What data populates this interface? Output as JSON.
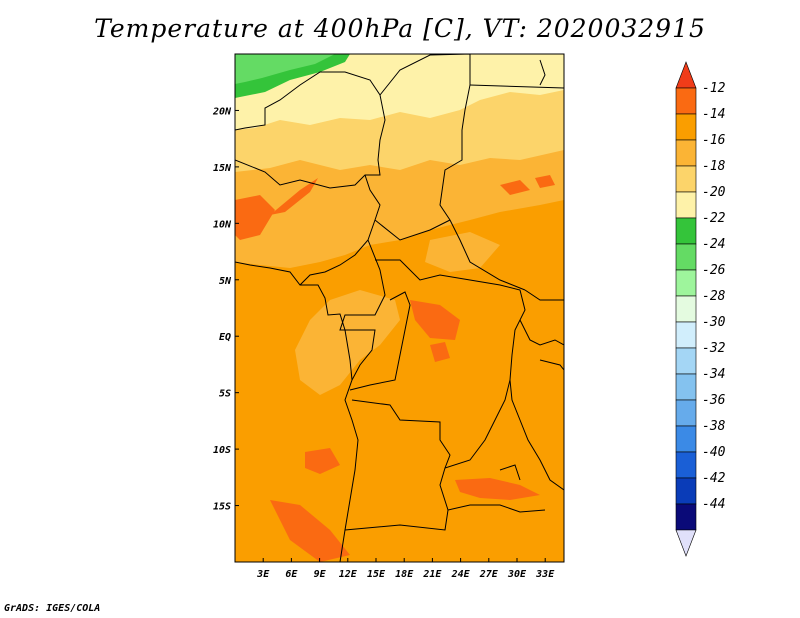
{
  "title": "Temperature at 400hPa [C], VT: 2020032915",
  "credit": "GrADS: IGES/COLA",
  "chart_data": {
    "type": "heatmap",
    "title": "Temperature at 400hPa [C], VT: 2020032915",
    "variable": "Temperature at 400hPa",
    "units": "C",
    "valid_time": "2020032915",
    "x_axis": {
      "labels": [
        "3E",
        "6E",
        "9E",
        "12E",
        "15E",
        "18E",
        "21E",
        "24E",
        "27E",
        "30E",
        "33E"
      ],
      "values": [
        3,
        6,
        9,
        12,
        15,
        18,
        21,
        24,
        27,
        30,
        33
      ],
      "range": [
        0,
        35
      ]
    },
    "y_axis": {
      "labels": [
        "20N",
        "15N",
        "10N",
        "5N",
        "EQ",
        "5S",
        "10S",
        "15S"
      ],
      "values": [
        20,
        15,
        10,
        5,
        0,
        -5,
        -10,
        -15
      ],
      "range": [
        -20,
        25
      ]
    },
    "colorbar": {
      "labels": [
        "-12",
        "-14",
        "-16",
        "-18",
        "-20",
        "-22",
        "-24",
        "-26",
        "-28",
        "-30",
        "-32",
        "-34",
        "-36",
        "-38",
        "-40",
        "-42",
        "-44"
      ],
      "colors": [
        "#f03c19",
        "#fa6a12",
        "#fa9e00",
        "#fbb435",
        "#fcd46a",
        "#fef2a9",
        "#34c43a",
        "#64db64",
        "#9ef59c",
        "#e4fbe0",
        "#d1eefc",
        "#a4d6f5",
        "#84c2ef",
        "#66abeb",
        "#3b8ae6",
        "#1a5fd6",
        "#0a3cb8",
        "#0a0a78",
        "#e0e0fa"
      ]
    }
  }
}
